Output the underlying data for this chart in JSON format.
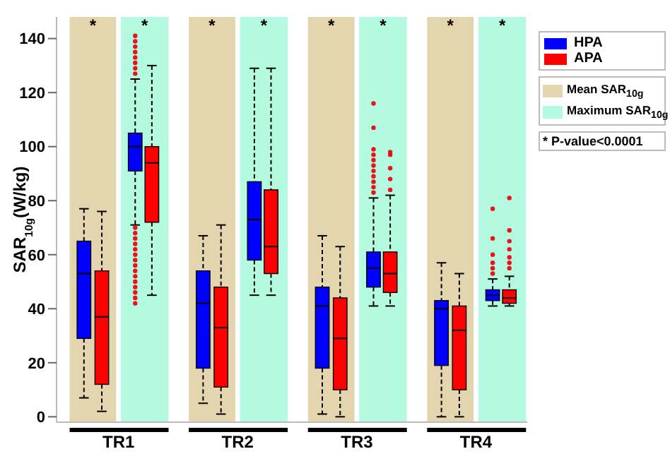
{
  "chart_data": {
    "type": "box",
    "ylabel": "SAR$_{10g}$(W/kg)",
    "categories": [
      "TR1",
      "TR2",
      "TR3",
      "TR4"
    ],
    "series": [
      {
        "name": "HPA",
        "color": "#0000ff",
        "boxes": [
          {
            "low": 7,
            "q1": 29,
            "median": 53,
            "q3": 65,
            "high": 77
          },
          {
            "low": 5,
            "q1": 18,
            "median": 42,
            "q3": 54,
            "high": 67
          },
          {
            "low": 1,
            "q1": 18,
            "median": 41,
            "q3": 48,
            "high": 67
          },
          {
            "low": 0,
            "q1": 19,
            "median": 40,
            "q3": 43,
            "high": 57
          }
        ]
      },
      {
        "name": "APA",
        "color": "#ff0000",
        "boxes": [
          {
            "low": 2,
            "q1": 12,
            "median": 37,
            "q3": 54,
            "high": 76
          },
          {
            "low": 1,
            "q1": 11,
            "median": 33,
            "q3": 48,
            "high": 71
          },
          {
            "low": 0,
            "q1": 10,
            "median": 29,
            "q3": 44,
            "high": 63
          },
          {
            "low": 0,
            "q1": 10,
            "median": 32,
            "q3": 41,
            "high": 53
          }
        ]
      },
      {
        "color": "#0000ff",
        "boxes": [
          {
            "low": 71,
            "q1": 91,
            "median": 100,
            "q3": 105,
            "high": 125,
            "outliers": [
              42,
              44,
              46,
              48,
              50,
              52,
              54,
              56,
              58,
              60,
              62,
              64,
              66,
              68,
              70,
              127,
              129,
              131,
              133,
              135,
              137,
              139,
              141
            ]
          },
          {
            "low": 45,
            "q1": 58,
            "median": 73,
            "q3": 87,
            "high": 129
          },
          {
            "low": 41,
            "q1": 48,
            "median": 55,
            "q3": 61,
            "high": 81,
            "outliers": [
              83,
              85,
              87,
              89,
              91,
              93,
              95,
              97,
              99,
              107,
              116
            ]
          },
          {
            "low": 41,
            "q1": 43,
            "median": 45,
            "q3": 47,
            "high": 51,
            "outliers": [
              53,
              55,
              57,
              60,
              66,
              77
            ]
          }
        ]
      },
      {
        "color": "#ff0000",
        "boxes": [
          {
            "low": 45,
            "q1": 72,
            "median": 94,
            "q3": 100,
            "high": 130
          },
          {
            "low": 45,
            "q1": 53,
            "median": 63,
            "q3": 84,
            "high": 129
          },
          {
            "low": 41,
            "q1": 46,
            "median": 53,
            "q3": 61,
            "high": 82,
            "outliers": [
              84,
              88,
              92,
              97,
              98
            ]
          },
          {
            "low": 41,
            "q1": 42,
            "median": 44,
            "q3": 47,
            "high": 52,
            "outliers": [
              55,
              57,
              59,
              62,
              65,
              69,
              81
            ]
          }
        ]
      }
    ],
    "bands": [
      {
        "axis": "x",
        "from": "TR1",
        "to": "TR1",
        "color": "#e3d5ad"
      },
      {
        "axis": "x",
        "from": "TR1",
        "to": "TR1",
        "color": "#b4fae0"
      },
      {
        "axis": "x",
        "from": "TR2",
        "to": "TR2",
        "color": "#e3d5ad"
      },
      {
        "axis": "x",
        "from": "TR2",
        "to": "TR2",
        "color": "#b4fae0"
      },
      {
        "axis": "x",
        "from": "TR3",
        "to": "TR3",
        "color": "#e3d5ad"
      },
      {
        "axis": "x",
        "from": "TR3",
        "to": "TR3",
        "color": "#b4fae0"
      },
      {
        "axis": "x",
        "from": "TR4",
        "to": "TR4",
        "color": "#e3d5ad"
      },
      {
        "axis": "x",
        "from": "TR4",
        "to": "TR4",
        "color": "#b4fae0"
      }
    ],
    "annotations": [
      "*",
      "*",
      "*",
      "*",
      "*",
      "*",
      "*",
      "*",
      "Mean SAR$_{10g}$",
      "Maximum SAR$_{10g}$",
      "* P-value<0.0001"
    ],
    "ylim": [
      -2,
      148
    ],
    "yticks": [
      0,
      20,
      40,
      60,
      80,
      100,
      120,
      140
    ],
    "grid": false,
    "legend": "right"
  }
}
